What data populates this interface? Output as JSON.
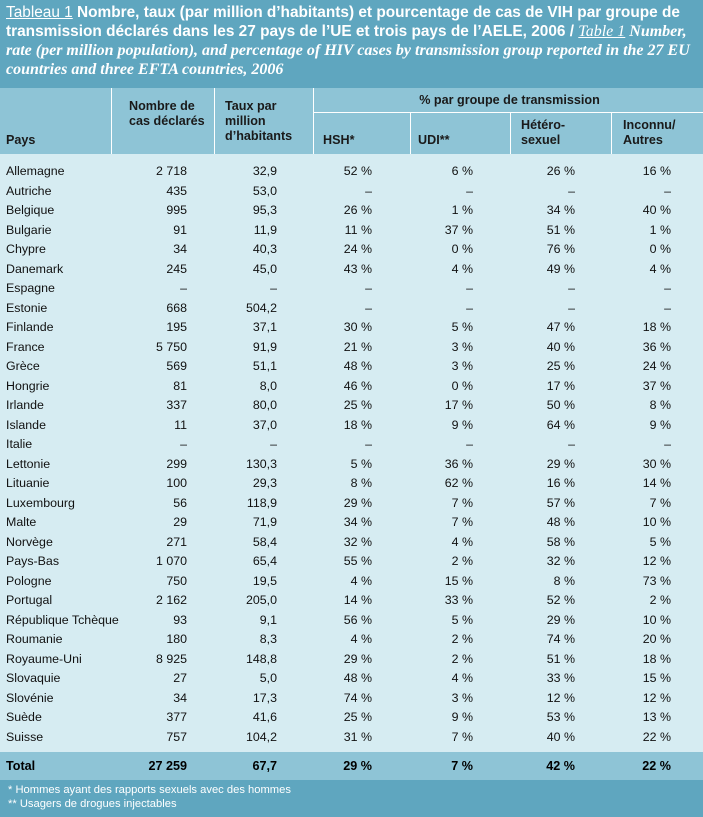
{
  "title": {
    "label": "Tableau 1",
    "fr": " Nombre, taux (par million d’habitants) et pourcentage de cas de VIH par groupe de transmission déclarés dans les 27 pays de l’UE et trois pays de l’AELE, 2006 / ",
    "en_label": "Table 1",
    "en": " Number, rate (per million population), and percentage of HIV cases by transmission group reported in the 27 EU countries and three EFTA countries, 2006"
  },
  "header": {
    "pays": "Pays",
    "nombre": "Nombre de cas déclarés",
    "taux": "Taux par million d’habitants",
    "groupe": "% par groupe de transmission",
    "hsh": "HSH*",
    "udi": "UDI**",
    "hetero": "Hétéro-sexuel",
    "inconnu": "Inconnu/ Autres"
  },
  "rows": [
    [
      "Allemagne",
      "2 718",
      "32,9",
      "52 %",
      "6 %",
      "26 %",
      "16 %"
    ],
    [
      "Autriche",
      "435",
      "53,0",
      "–",
      "–",
      "–",
      "–"
    ],
    [
      "Belgique",
      "995",
      "95,3",
      "26 %",
      "1 %",
      "34 %",
      "40 %"
    ],
    [
      "Bulgarie",
      "91",
      "11,9",
      "11 %",
      "37 %",
      "51 %",
      "1 %"
    ],
    [
      "Chypre",
      "34",
      "40,3",
      "24 %",
      "0 %",
      "76 %",
      "0 %"
    ],
    [
      "Danemark",
      "245",
      "45,0",
      "43 %",
      "4 %",
      "49 %",
      "4 %"
    ],
    [
      "Espagne",
      "–",
      "–",
      "–",
      "–",
      "–",
      "–"
    ],
    [
      "Estonie",
      "668",
      "504,2",
      "–",
      "–",
      "–",
      "–"
    ],
    [
      "Finlande",
      "195",
      "37,1",
      "30 %",
      "5 %",
      "47 %",
      "18 %"
    ],
    [
      "France",
      "5 750",
      "91,9",
      "21 %",
      "3 %",
      "40 %",
      "36 %"
    ],
    [
      "Grèce",
      "569",
      "51,1",
      "48 %",
      "3 %",
      "25 %",
      "24 %"
    ],
    [
      "Hongrie",
      "81",
      "8,0",
      "46 %",
      "0 %",
      "17 %",
      "37 %"
    ],
    [
      "Irlande",
      "337",
      "80,0",
      "25 %",
      "17 %",
      "50 %",
      "8 %"
    ],
    [
      "Islande",
      "11",
      "37,0",
      "18 %",
      "9 %",
      "64 %",
      "9 %"
    ],
    [
      "Italie",
      "–",
      "–",
      "–",
      "–",
      "–",
      "–"
    ],
    [
      "Lettonie",
      "299",
      "130,3",
      "5 %",
      "36 %",
      "29 %",
      "30 %"
    ],
    [
      "Lituanie",
      "100",
      "29,3",
      "8 %",
      "62 %",
      "16 %",
      "14 %"
    ],
    [
      "Luxembourg",
      "56",
      "118,9",
      "29 %",
      "7 %",
      "57 %",
      "7 %"
    ],
    [
      "Malte",
      "29",
      "71,9",
      "34 %",
      "7 %",
      "48 %",
      "10 %"
    ],
    [
      "Norvège",
      "271",
      "58,4",
      "32 %",
      "4 %",
      "58 %",
      "5 %"
    ],
    [
      "Pays-Bas",
      "1 070",
      "65,4",
      "55 %",
      "2 %",
      "32 %",
      "12 %"
    ],
    [
      "Pologne",
      "750",
      "19,5",
      "4 %",
      "15 %",
      "8 %",
      "73 %"
    ],
    [
      "Portugal",
      "2 162",
      "205,0",
      "14 %",
      "33 %",
      "52 %",
      "2 %"
    ],
    [
      "République Tchèque",
      "93",
      "9,1",
      "56 %",
      "5 %",
      "29 %",
      "10 %"
    ],
    [
      "Roumanie",
      "180",
      "8,3",
      "4 %",
      "2 %",
      "74 %",
      "20 %"
    ],
    [
      "Royaume-Uni",
      "8 925",
      "148,8",
      "29 %",
      "2 %",
      "51 %",
      "18 %"
    ],
    [
      "Slovaquie",
      "27",
      "5,0",
      "48 %",
      "4 %",
      "33 %",
      "15 %"
    ],
    [
      "Slovénie",
      "34",
      "17,3",
      "74 %",
      "3 %",
      "12 %",
      "12 %"
    ],
    [
      "Suède",
      "377",
      "41,6",
      "25 %",
      "9 %",
      "53 %",
      "13 %"
    ],
    [
      "Suisse",
      "757",
      "104,2",
      "31 %",
      "7 %",
      "40 %",
      "22 %"
    ]
  ],
  "total": [
    "Total",
    "27 259",
    "67,7",
    "29 %",
    "7 %",
    "42 %",
    "22 %"
  ],
  "footnotes": [
    "* Hommes ayant des rapports sexuels avec des hommes",
    "** Usagers de drogues injectables"
  ]
}
